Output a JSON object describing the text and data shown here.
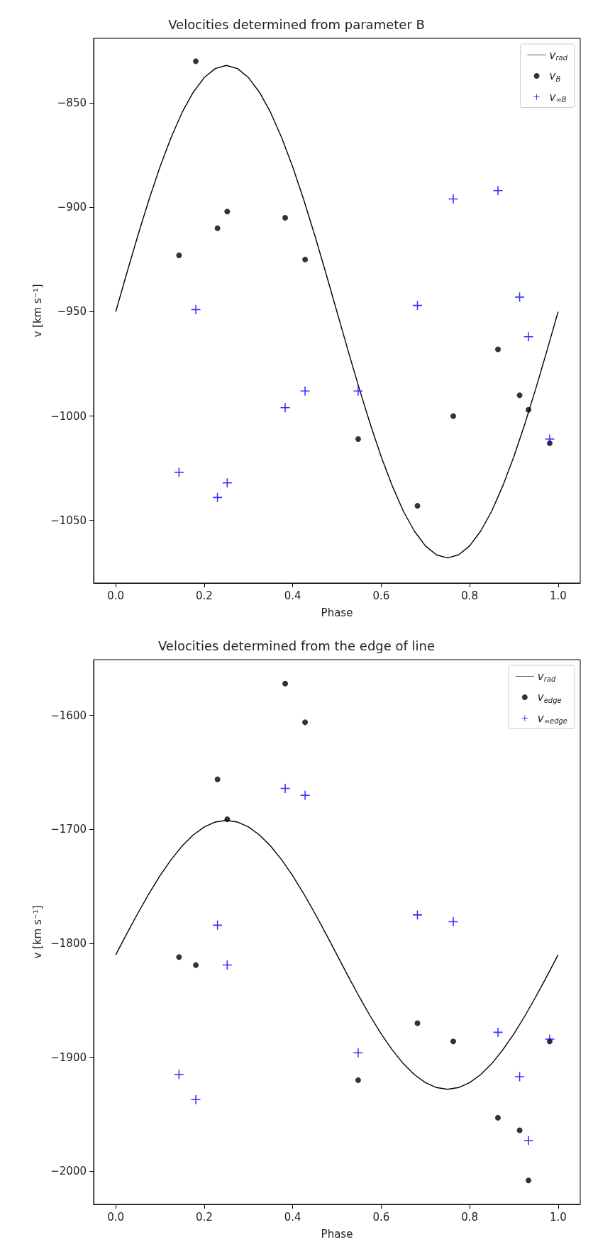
{
  "chart_data": [
    {
      "type": "scatter",
      "title": "Velocities determined from parameter B",
      "xlabel": "Phase",
      "ylabel": "v [km s⁻¹]",
      "x": [
        0.143,
        0.181,
        0.23,
        0.252,
        0.383,
        0.428,
        0.548,
        0.682,
        0.763,
        0.864,
        0.913,
        0.933,
        0.981
      ],
      "series": [
        {
          "name": "v$_{rad}$",
          "type": "line",
          "color": "#000000",
          "marker": "none",
          "line_style": "solid",
          "x": [
            0,
            0.025,
            0.05,
            0.075,
            0.1,
            0.125,
            0.15,
            0.175,
            0.2,
            0.225,
            0.25,
            0.275,
            0.3,
            0.325,
            0.35,
            0.375,
            0.4,
            0.425,
            0.45,
            0.475,
            0.5,
            0.525,
            0.55,
            0.575,
            0.6,
            0.625,
            0.65,
            0.675,
            0.7,
            0.725,
            0.75,
            0.775,
            0.8,
            0.825,
            0.85,
            0.875,
            0.9,
            0.925,
            0.95,
            0.975,
            1
          ],
          "values": [
            -950,
            -931.5,
            -913.5,
            -896.4,
            -880.6,
            -866.6,
            -854.5,
            -844.9,
            -837.8,
            -833.5,
            -832,
            -833.5,
            -837.8,
            -844.9,
            -854.5,
            -866.6,
            -880.6,
            -896.4,
            -913.5,
            -931.5,
            -950,
            -968.5,
            -986.5,
            -1003.6,
            -1019.4,
            -1033.4,
            -1045.5,
            -1055.1,
            -1062.2,
            -1066.5,
            -1068,
            -1066.5,
            -1062.2,
            -1055.1,
            -1045.5,
            -1033.4,
            -1019.4,
            -1003.6,
            -986.5,
            -968.5,
            -950
          ]
        },
        {
          "name": "v$_{B}$",
          "color": "#000000",
          "marker": "circle",
          "values": [
            -923,
            -830,
            -910,
            -902,
            -905,
            -925,
            -1011,
            -1043,
            -1000,
            -968,
            -990,
            -997,
            -1013
          ]
        },
        {
          "name": "v$_{∞B}$",
          "color": "#0000ff",
          "marker": "cross",
          "values": [
            -1027,
            -949,
            -1039,
            -1032,
            -996,
            -988,
            -988,
            -947,
            -896,
            -892,
            -943,
            -962,
            -1011
          ]
        }
      ],
      "xlim": [
        -0.05,
        1.05
      ],
      "ylim": [
        -1080,
        -819
      ],
      "xticks": [
        {
          "value": 0,
          "label": "0.0"
        },
        {
          "value": 0.2,
          "label": "0.2"
        },
        {
          "value": 0.4,
          "label": "0.4"
        },
        {
          "value": 0.6,
          "label": "0.6"
        },
        {
          "value": 0.8,
          "label": "0.8"
        },
        {
          "value": 1,
          "label": "1.0"
        }
      ],
      "yticks": [
        {
          "value": -1050,
          "label": "−1050"
        },
        {
          "value": -1000,
          "label": "−1000"
        },
        {
          "value": -950,
          "label": "−950"
        },
        {
          "value": -900,
          "label": "−900"
        },
        {
          "value": -850,
          "label": "−850"
        }
      ],
      "grid": false,
      "legend": "top right"
    },
    {
      "type": "scatter",
      "title": "Velocities determined from the edge of line",
      "xlabel": "Phase",
      "ylabel": "v [km s⁻¹]",
      "x": [
        0.143,
        0.181,
        0.23,
        0.252,
        0.383,
        0.428,
        0.548,
        0.682,
        0.763,
        0.864,
        0.913,
        0.933,
        0.981
      ],
      "series": [
        {
          "name": "v$_{rad}$",
          "type": "line",
          "color": "#000000",
          "marker": "none",
          "line_style": "solid",
          "x": [
            0,
            0.025,
            0.05,
            0.075,
            0.1,
            0.125,
            0.15,
            0.175,
            0.2,
            0.225,
            0.25,
            0.275,
            0.3,
            0.325,
            0.35,
            0.375,
            0.4,
            0.425,
            0.45,
            0.475,
            0.5,
            0.525,
            0.55,
            0.575,
            0.6,
            0.625,
            0.65,
            0.675,
            0.7,
            0.725,
            0.75,
            0.775,
            0.8,
            0.825,
            0.85,
            0.875,
            0.9,
            0.925,
            0.95,
            0.975,
            1
          ],
          "values": [
            -1810,
            -1791.5,
            -1773.5,
            -1756.4,
            -1740.6,
            -1726.6,
            -1714.5,
            -1704.9,
            -1697.8,
            -1693.5,
            -1692,
            -1693.5,
            -1697.8,
            -1704.9,
            -1714.5,
            -1726.6,
            -1740.6,
            -1756.4,
            -1773.5,
            -1791.5,
            -1810,
            -1828.5,
            -1846.5,
            -1863.6,
            -1879.4,
            -1893.4,
            -1905.5,
            -1915.1,
            -1922.2,
            -1926.5,
            -1928,
            -1926.5,
            -1922.2,
            -1915.1,
            -1905.5,
            -1893.4,
            -1879.4,
            -1863.6,
            -1846.5,
            -1828.5,
            -1810
          ]
        },
        {
          "name": "v$_{edge}$",
          "color": "#000000",
          "marker": "circle",
          "values": [
            -1812,
            -1819,
            -1656,
            -1691,
            -1572,
            -1606,
            -1920,
            -1870,
            -1886,
            -1953,
            -1964,
            -2008,
            -1886
          ]
        },
        {
          "name": "v$_{∞edge}$",
          "color": "#0000ff",
          "marker": "cross",
          "values": [
            -1915,
            -1937,
            -1784,
            -1819,
            -1664,
            -1670,
            -1896,
            -1775,
            -1781,
            -1878,
            -1917,
            -1973,
            -1884
          ]
        }
      ],
      "xlim": [
        -0.05,
        1.05
      ],
      "ylim": [
        -2029,
        -1551
      ],
      "xticks": [
        {
          "value": 0,
          "label": "0.0"
        },
        {
          "value": 0.2,
          "label": "0.2"
        },
        {
          "value": 0.4,
          "label": "0.4"
        },
        {
          "value": 0.6,
          "label": "0.6"
        },
        {
          "value": 0.8,
          "label": "0.8"
        },
        {
          "value": 1,
          "label": "1.0"
        }
      ],
      "yticks": [
        {
          "value": -2000,
          "label": "−2000"
        },
        {
          "value": -1900,
          "label": "−1900"
        },
        {
          "value": -1800,
          "label": "−1800"
        },
        {
          "value": -1700,
          "label": "−1700"
        },
        {
          "value": -1600,
          "label": "−1600"
        }
      ],
      "grid": false,
      "legend": "top right"
    }
  ]
}
